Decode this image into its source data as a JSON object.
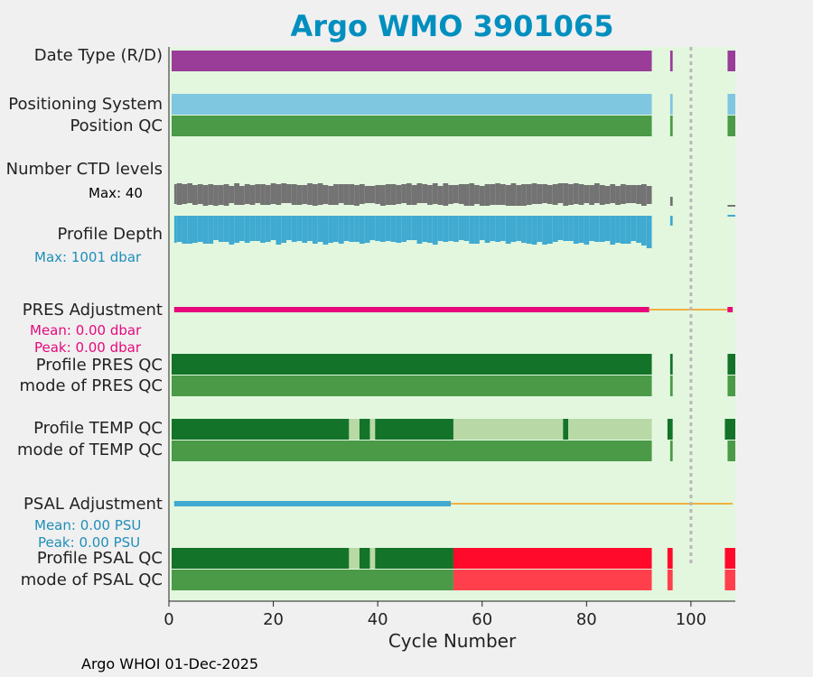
{
  "chart_data": {
    "type": "timeline",
    "title": "Argo WMO 3901065",
    "xlabel": "Cycle Number",
    "xlim": [
      0,
      108.5
    ],
    "xticks": [
      0,
      20,
      40,
      60,
      80,
      100
    ],
    "reference_line_cycle": 100,
    "footer": "Argo WHOI 01-Dec-2025",
    "colors": {
      "background": "#e3f7de",
      "rd": "#993d99",
      "pos_system": "#7fc6e0",
      "qc_good": "#4a9a48",
      "qc_dark": "#137329",
      "qc_light": "#b8d9a6",
      "qc_bad": "#ff0a2b",
      "qc_bad_mode": "#ff404c",
      "ctd": "#737373",
      "depth": "#40aad1",
      "pres_adj": "#e5097c",
      "adj_flat": "#f0b042",
      "psal_adj": "#40aad1",
      "max_ctd_text": "#000000",
      "max_depth_text": "#1f8fb8"
    },
    "labels": {
      "date_type": "Date Type (R/D)",
      "positioning_system": "Positioning System",
      "position_qc": "Position QC",
      "number_ctd_levels": "Number CTD levels",
      "max_ctd": "Max: 40",
      "profile_depth": "Profile Depth",
      "max_depth": "Max: 1001 dbar",
      "pres_adjustment": "PRES Adjustment",
      "pres_mean": "Mean: 0.00 dbar",
      "pres_peak": "Peak: 0.00 dbar",
      "profile_pres_qc": "Profile PRES QC",
      "mode_pres_qc": "mode of PRES QC",
      "profile_temp_qc": "Profile TEMP QC",
      "mode_temp_qc": "mode of TEMP QC",
      "psal_adjustment": "PSAL Adjustment",
      "psal_mean": "Mean: 0.00 PSU",
      "psal_peak": "Peak: 0.00 PSU",
      "profile_psal_qc": "Profile PSAL QC",
      "mode_psal_qc": "mode of PSAL QC"
    },
    "max_ctd_levels": 40,
    "max_depth_dbar": 1001,
    "cycle_groups": [
      [
        0,
        92.5
      ],
      [
        95.5,
        96.5
      ],
      [
        106.5,
        108.5
      ]
    ],
    "profile_temp_qc_segments": [
      {
        "from": 0,
        "to": 34.5,
        "class": "dark"
      },
      {
        "from": 34.5,
        "to": 36.5,
        "class": "light"
      },
      {
        "from": 36.5,
        "to": 38.5,
        "class": "dark"
      },
      {
        "from": 38.5,
        "to": 39.5,
        "class": "light"
      },
      {
        "from": 39.5,
        "to": 54.5,
        "class": "dark"
      },
      {
        "from": 54.5,
        "to": 75.5,
        "class": "light"
      },
      {
        "from": 75.5,
        "to": 76.5,
        "class": "dark"
      },
      {
        "from": 76.5,
        "to": 92.5,
        "class": "light"
      },
      {
        "from": 95.5,
        "to": 96.5,
        "class": "dark"
      },
      {
        "from": 106.5,
        "to": 108.5,
        "class": "dark"
      }
    ],
    "profile_psal_qc_segments": [
      {
        "from": 0,
        "to": 34.5,
        "class": "dark"
      },
      {
        "from": 34.5,
        "to": 36.5,
        "class": "light"
      },
      {
        "from": 36.5,
        "to": 38.5,
        "class": "dark"
      },
      {
        "from": 38.5,
        "to": 39.5,
        "class": "light"
      },
      {
        "from": 39.5,
        "to": 54.5,
        "class": "dark"
      },
      {
        "from": 54.5,
        "to": 92.5,
        "class": "bad"
      },
      {
        "from": 95.5,
        "to": 96.5,
        "class": "bad"
      },
      {
        "from": 106.5,
        "to": 108.5,
        "class": "bad"
      }
    ],
    "mode_psal_qc_segments": [
      {
        "from": 0,
        "to": 54.5,
        "class": "good"
      },
      {
        "from": 54.5,
        "to": 92.5,
        "class": "bad_mode"
      },
      {
        "from": 95.5,
        "to": 96.5,
        "class": "bad_mode"
      },
      {
        "from": 106.5,
        "to": 108.5,
        "class": "bad_mode"
      }
    ],
    "pres_adjustment_segments": [
      {
        "from": 1,
        "to": 92,
        "style": "thick"
      },
      {
        "from": 92,
        "to": 107,
        "style": "flat"
      },
      {
        "from": 107,
        "to": 108,
        "style": "thick"
      }
    ],
    "psal_adjustment_segments": [
      {
        "from": 1,
        "to": 54,
        "style": "thick"
      },
      {
        "from": 54,
        "to": 108,
        "style": "flat"
      }
    ]
  }
}
